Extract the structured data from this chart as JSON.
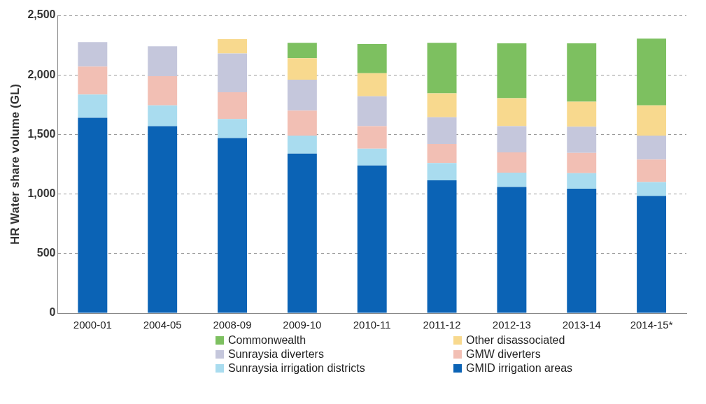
{
  "chart_data": {
    "type": "bar",
    "stacked": true,
    "ylabel": "HR Water share volume (GL)",
    "categories": [
      "2000-01",
      "2004-05",
      "2008-09",
      "2009-10",
      "2010-11",
      "2011-12",
      "2012-13",
      "2013-14",
      "2014-15*"
    ],
    "series": [
      {
        "name": "GMID irrigation areas",
        "color": "#0b63b5",
        "values": [
          1640,
          1570,
          1470,
          1340,
          1240,
          1115,
          1060,
          1045,
          985
        ]
      },
      {
        "name": "Sunraysia irrigation districts",
        "color": "#a9dcef",
        "values": [
          195,
          175,
          160,
          150,
          140,
          145,
          120,
          130,
          115
        ]
      },
      {
        "name": "GMW diverters",
        "color": "#f2bfb4",
        "values": [
          235,
          245,
          225,
          210,
          190,
          160,
          170,
          170,
          190
        ]
      },
      {
        "name": "Sunraysia diverters",
        "color": "#c5c7dc",
        "values": [
          205,
          250,
          325,
          260,
          250,
          225,
          220,
          220,
          200
        ]
      },
      {
        "name": "Other disassociated",
        "color": "#f8d98e",
        "values": [
          null,
          null,
          120,
          180,
          195,
          200,
          235,
          210,
          255
        ]
      },
      {
        "name": "Commonwealth",
        "color": "#7dc060",
        "values": [
          null,
          null,
          null,
          130,
          245,
          425,
          460,
          490,
          560
        ]
      }
    ],
    "ylim": [
      0,
      2500
    ],
    "yticks": [
      {
        "value": 0,
        "label": "0"
      },
      {
        "value": 500,
        "label": "500"
      },
      {
        "value": 1000,
        "label": "1,000"
      },
      {
        "value": 1500,
        "label": "1,500"
      },
      {
        "value": 2000,
        "label": "2,000"
      },
      {
        "value": 2500,
        "label": "2,500"
      }
    ],
    "grid": "y",
    "legend": "bottom"
  }
}
